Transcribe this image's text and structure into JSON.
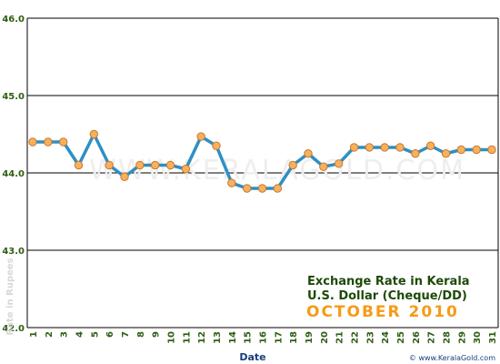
{
  "chart_data": {
    "type": "line",
    "title": "Exchange Rate in Kerala",
    "subtitle": "U.S. Dollar (Cheque/DD)",
    "period": "OCTOBER 2010",
    "xlabel": "Date",
    "ylabel": "Rate in Rupees",
    "watermark": "WWW.KERALAGOLD.COM",
    "credit": "© www.KeralaGold.com",
    "ylim": [
      42.0,
      46.0
    ],
    "yticks": [
      "42.0",
      "43.0",
      "44.0",
      "45.0",
      "46.0"
    ],
    "categories": [
      "1",
      "2",
      "3",
      "4",
      "5",
      "6",
      "7",
      "8",
      "9",
      "10",
      "11",
      "12",
      "13",
      "14",
      "15",
      "16",
      "17",
      "18",
      "19",
      "20",
      "21",
      "22",
      "23",
      "24",
      "25",
      "26",
      "27",
      "28",
      "29",
      "30",
      "31"
    ],
    "values": [
      44.4,
      44.4,
      44.4,
      44.1,
      44.5,
      44.1,
      43.95,
      44.1,
      44.1,
      44.1,
      44.05,
      44.47,
      44.35,
      43.87,
      43.8,
      43.8,
      43.8,
      44.1,
      44.25,
      44.08,
      44.12,
      44.33,
      44.33,
      44.33,
      44.33,
      44.25,
      44.35,
      44.25,
      44.3,
      44.3,
      44.3
    ],
    "grid": true,
    "legend": "none",
    "colors": {
      "line": "#2f8fc4",
      "marker_fill": "#f6b15f",
      "marker_stroke": "#c9782a",
      "tick_label": "#2e5f12",
      "axis_title": "#1a3d7a",
      "caption_title": "#1d4a08",
      "period": "#f59b17",
      "watermark": "#eeeeee",
      "credit": "#1a3d7a"
    }
  }
}
